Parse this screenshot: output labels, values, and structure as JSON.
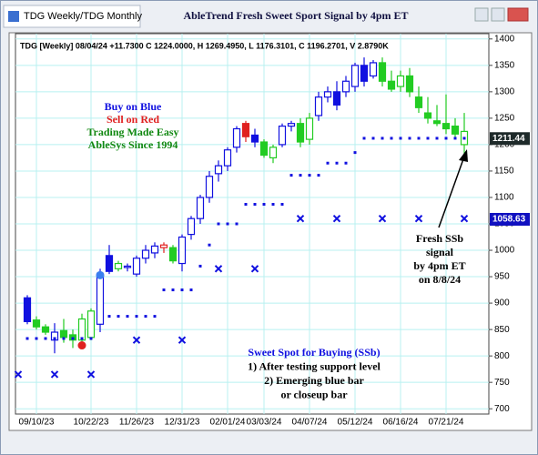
{
  "window": {
    "tab": "TDG Weekly/TDG Monthly"
  },
  "chart_data": {
    "type": "candlestick",
    "title": "AbleTrend Fresh Sweet Sport Signal by 4pm ET",
    "header": "TDG [Weekly] 08/04/24 +11.7300 C 1224.0000, H 1269.4950, L 1176.3101, C 1196.2701, V 2.8790K",
    "categories": [
      null,
      null,
      "09/10/23",
      null,
      null,
      null,
      null,
      null,
      "10/22/23",
      null,
      null,
      null,
      null,
      "11/26/23",
      null,
      null,
      null,
      null,
      "12/31/23",
      null,
      null,
      null,
      null,
      "02/01/24",
      null,
      null,
      null,
      "03/03/24",
      null,
      null,
      null,
      null,
      "04/07/24",
      null,
      null,
      null,
      null,
      "05/12/24",
      null,
      null,
      null,
      null,
      "06/16/24",
      null,
      null,
      null,
      null,
      "07/21/24",
      null,
      null
    ],
    "open": [
      null,
      910,
      868,
      855,
      830,
      848,
      840,
      830,
      835,
      860,
      990,
      965,
      968,
      955,
      985,
      995,
      1005,
      1005,
      975,
      1030,
      1060,
      1100,
      1145,
      1160,
      1195,
      1240,
      1218,
      1205,
      1175,
      1200,
      1235,
      1240,
      1210,
      1255,
      1290,
      1300,
      1300,
      1310,
      1350,
      1330,
      1355,
      1320,
      1310,
      1330,
      1290,
      1260,
      1245,
      1240,
      1235,
      1200
    ],
    "high": [
      null,
      915,
      875,
      860,
      862,
      870,
      850,
      880,
      890,
      965,
      1010,
      980,
      975,
      990,
      1010,
      1015,
      1015,
      1010,
      1030,
      1065,
      1105,
      1150,
      1170,
      1195,
      1235,
      1245,
      1230,
      1210,
      1200,
      1240,
      1245,
      1250,
      1260,
      1300,
      1310,
      1320,
      1330,
      1355,
      1365,
      1360,
      1365,
      1340,
      1340,
      1345,
      1310,
      1290,
      1275,
      1295,
      1250,
      1260
    ],
    "low": [
      null,
      860,
      850,
      840,
      805,
      825,
      815,
      822,
      830,
      845,
      955,
      960,
      960,
      950,
      975,
      985,
      995,
      975,
      960,
      1020,
      1050,
      1090,
      1130,
      1150,
      1185,
      1205,
      1195,
      1175,
      1165,
      1195,
      1225,
      1195,
      1200,
      1245,
      1280,
      1265,
      1290,
      1300,
      1310,
      1325,
      1310,
      1300,
      1300,
      1290,
      1260,
      1240,
      1235,
      1220,
      1210,
      1180
    ],
    "close": [
      null,
      865,
      855,
      845,
      845,
      835,
      830,
      870,
      885,
      955,
      960,
      975,
      970,
      985,
      1000,
      1008,
      1010,
      980,
      1025,
      1060,
      1100,
      1140,
      1160,
      1190,
      1230,
      1215,
      1205,
      1180,
      1195,
      1235,
      1240,
      1205,
      1250,
      1290,
      1300,
      1275,
      1320,
      1350,
      1320,
      1355,
      1320,
      1305,
      1330,
      1300,
      1270,
      1250,
      1240,
      1230,
      1220,
      1225
    ],
    "colors": [
      null,
      "#1010e0",
      "#22cc22",
      "#22cc22",
      "#1010e0",
      "#22cc22",
      "#22cc22",
      "#22cc22",
      "#22cc22",
      "#1010e0",
      "#1010e0",
      "#22cc22",
      "#1010e0",
      "#1010e0",
      "#1010e0",
      "#1010e0",
      "#e02020",
      "#22cc22",
      "#1010e0",
      "#1010e0",
      "#1010e0",
      "#1010e0",
      "#1010e0",
      "#1010e0",
      "#1010e0",
      "#e02020",
      "#1010e0",
      "#22cc22",
      "#22cc22",
      "#1010e0",
      "#1010e0",
      "#22cc22",
      "#22cc22",
      "#1010e0",
      "#1010e0",
      "#1010e0",
      "#1010e0",
      "#1010e0",
      "#1010e0",
      "#1010e0",
      "#22cc22",
      "#22cc22",
      "#22cc22",
      "#22cc22",
      "#22cc22",
      "#22cc22",
      "#22cc22",
      "#22cc22",
      "#22cc22",
      "#22cc22"
    ],
    "stops": [
      null,
      833,
      833,
      833,
      833,
      833,
      833,
      833,
      833,
      null,
      875,
      875,
      875,
      875,
      875,
      875,
      925,
      925,
      925,
      925,
      970,
      1010,
      1050,
      1050,
      1050,
      1087,
      1087,
      1087,
      1087,
      1087,
      1142,
      1142,
      1142,
      1142,
      1165,
      1165,
      1165,
      1185,
      1212,
      1212,
      1212,
      1212,
      1212,
      1212,
      1212,
      1212,
      1212,
      1212,
      1212,
      1212
    ],
    "stop_color": "#1010e0",
    "x_markers": [
      765,
      null,
      null,
      null,
      765,
      null,
      null,
      null,
      765,
      null,
      null,
      null,
      null,
      830,
      null,
      null,
      null,
      null,
      830,
      null,
      null,
      null,
      965,
      null,
      null,
      null,
      965,
      null,
      null,
      null,
      null,
      1060,
      null,
      null,
      null,
      1060,
      null,
      null,
      null,
      null,
      1060,
      null,
      null,
      null,
      1060,
      null,
      null,
      null,
      null,
      1060
    ],
    "signal_dots": [
      null,
      null,
      null,
      null,
      null,
      null,
      null,
      820,
      null,
      953,
      null,
      null,
      null,
      null,
      null,
      null,
      null,
      null,
      null,
      null,
      null,
      null,
      null,
      null,
      null,
      null,
      null,
      null,
      null,
      null,
      null,
      null,
      null,
      null,
      null,
      null,
      null,
      null,
      null,
      null,
      null,
      null,
      null,
      null,
      null,
      null,
      null,
      null,
      null,
      null
    ],
    "signal_dot_colors": [
      null,
      null,
      null,
      null,
      null,
      null,
      null,
      "#e02020",
      null,
      "#3a7ff0",
      null,
      null,
      null,
      null,
      null,
      null,
      null,
      null,
      null,
      null,
      null,
      null,
      null,
      null,
      null,
      null,
      null,
      null,
      null,
      null,
      null,
      null,
      null,
      null,
      null,
      null,
      null,
      null,
      null,
      null,
      null,
      null,
      null,
      null,
      null,
      null,
      null,
      null,
      null,
      null
    ],
    "ylim": [
      690,
      1410
    ],
    "yticks": [
      700,
      750,
      800,
      850,
      900,
      950,
      1000,
      1050,
      1100,
      1150,
      1200,
      1250,
      1300,
      1350,
      1400
    ],
    "grid": true,
    "price_labels": [
      {
        "value": 1211.44,
        "color": "#1e2a2a"
      },
      {
        "value": 1058.63,
        "color": "#1010c0"
      }
    ],
    "annotations": {
      "legend": [
        {
          "text": "Buy on Blue",
          "color": "#1010e0"
        },
        {
          "text": "Sell on Red",
          "color": "#e02020"
        },
        {
          "text": "Trading Made Easy",
          "color": "#118811"
        },
        {
          "text": "AbleSys Since 1994",
          "color": "#118811"
        }
      ],
      "sweet_spot": [
        {
          "text": "Sweet Spot for Buying (SSb)",
          "color": "#1010e0"
        },
        {
          "text": "1) After testing support level",
          "color": "#000000"
        },
        {
          "text": "2) Emerging blue bar",
          "color": "#000000"
        },
        {
          "text": "or closeup bar",
          "color": "#000000"
        }
      ],
      "signal_note": [
        {
          "text": "Fresh SSb",
          "color": "#000000"
        },
        {
          "text": "signal",
          "color": "#000000"
        },
        {
          "text": "by 4pm ET",
          "color": "#000000"
        },
        {
          "text": "on 8/8/24",
          "color": "#000000"
        }
      ]
    }
  }
}
